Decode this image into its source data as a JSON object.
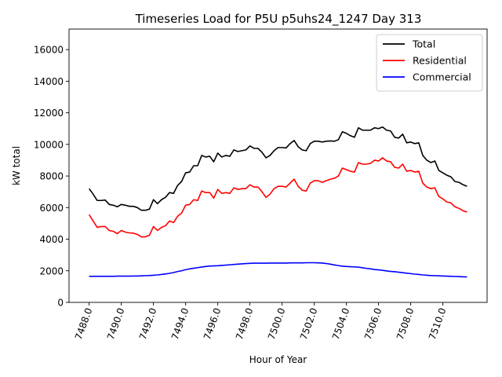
{
  "chart_data": {
    "type": "line",
    "title": "Timeseries Load for P5U p5uhs24_1247  Day 313",
    "xlabel": "Hour of Year",
    "ylabel": "kW total",
    "xlim": [
      7486.75,
      7512.75
    ],
    "ylim": [
      0,
      17300
    ],
    "x_ticks": [
      7488,
      7490,
      7492,
      7494,
      7496,
      7498,
      7500,
      7502,
      7504,
      7506,
      7508,
      7510
    ],
    "x_tick_labels": [
      "7488.0",
      "7490.0",
      "7492.0",
      "7494.0",
      "7496.0",
      "7498.0",
      "7500.0",
      "7502.0",
      "7504.0",
      "7506.0",
      "7508.0",
      "7510.0"
    ],
    "y_ticks": [
      0,
      2000,
      4000,
      6000,
      8000,
      10000,
      12000,
      14000,
      16000
    ],
    "y_tick_labels": [
      "0",
      "2000",
      "4000",
      "6000",
      "8000",
      "10000",
      "12000",
      "14000",
      "16000"
    ],
    "legend_position": "top-right",
    "x_start": 7488,
    "x_step": 0.25,
    "series": [
      {
        "name": "Total",
        "color": "#000000",
        "values": [
          7200,
          6850,
          6450,
          6450,
          6480,
          6200,
          6150,
          6050,
          6200,
          6150,
          6080,
          6080,
          6000,
          5830,
          5830,
          5900,
          6500,
          6250,
          6500,
          6650,
          6950,
          6900,
          7400,
          7650,
          8200,
          8250,
          8650,
          8650,
          9300,
          9200,
          9250,
          8900,
          9450,
          9200,
          9300,
          9250,
          9650,
          9550,
          9600,
          9650,
          9900,
          9750,
          9750,
          9500,
          9150,
          9300,
          9600,
          9800,
          9800,
          9780,
          10050,
          10250,
          9850,
          9650,
          9600,
          10050,
          10200,
          10200,
          10150,
          10200,
          10220,
          10200,
          10300,
          10800,
          10700,
          10550,
          10450,
          11050,
          10900,
          10900,
          10900,
          11050,
          11000,
          11100,
          10900,
          10850,
          10450,
          10400,
          10650,
          10100,
          10150,
          10050,
          10100,
          9300,
          9000,
          8850,
          8950,
          8350,
          8200,
          8050,
          7950,
          7650,
          7600,
          7450,
          7350
        ]
      },
      {
        "name": "Residential",
        "color": "#ff0000",
        "values": [
          5550,
          5150,
          4750,
          4800,
          4800,
          4550,
          4500,
          4350,
          4550,
          4450,
          4400,
          4380,
          4300,
          4150,
          4150,
          4250,
          4800,
          4550,
          4750,
          4850,
          5150,
          5050,
          5450,
          5650,
          6150,
          6200,
          6500,
          6450,
          7050,
          6950,
          6950,
          6600,
          7150,
          6900,
          6950,
          6900,
          7250,
          7150,
          7200,
          7200,
          7450,
          7300,
          7300,
          7000,
          6650,
          6850,
          7200,
          7350,
          7350,
          7300,
          7550,
          7800,
          7350,
          7100,
          7050,
          7550,
          7700,
          7700,
          7600,
          7700,
          7800,
          7850,
          8000,
          8500,
          8400,
          8300,
          8250,
          8850,
          8750,
          8750,
          8800,
          9000,
          8950,
          9150,
          8950,
          8900,
          8550,
          8500,
          8750,
          8300,
          8350,
          8250,
          8300,
          7550,
          7300,
          7200,
          7250,
          6700,
          6550,
          6350,
          6300,
          6050,
          5950,
          5800,
          5720
        ]
      },
      {
        "name": "Commercial",
        "color": "#0000ff",
        "values": [
          1650,
          1650,
          1650,
          1650,
          1650,
          1650,
          1650,
          1660,
          1660,
          1660,
          1660,
          1670,
          1670,
          1680,
          1690,
          1700,
          1720,
          1740,
          1770,
          1800,
          1840,
          1890,
          1950,
          2000,
          2070,
          2120,
          2160,
          2200,
          2240,
          2270,
          2300,
          2310,
          2320,
          2340,
          2360,
          2380,
          2400,
          2420,
          2440,
          2460,
          2470,
          2480,
          2480,
          2480,
          2480,
          2490,
          2490,
          2490,
          2490,
          2490,
          2500,
          2500,
          2500,
          2500,
          2510,
          2510,
          2510,
          2500,
          2490,
          2460,
          2420,
          2370,
          2330,
          2290,
          2270,
          2260,
          2250,
          2230,
          2190,
          2150,
          2120,
          2080,
          2060,
          2030,
          1990,
          1960,
          1940,
          1910,
          1880,
          1850,
          1820,
          1790,
          1770,
          1740,
          1720,
          1700,
          1690,
          1680,
          1670,
          1660,
          1650,
          1640,
          1630,
          1620,
          1610
        ]
      }
    ]
  }
}
